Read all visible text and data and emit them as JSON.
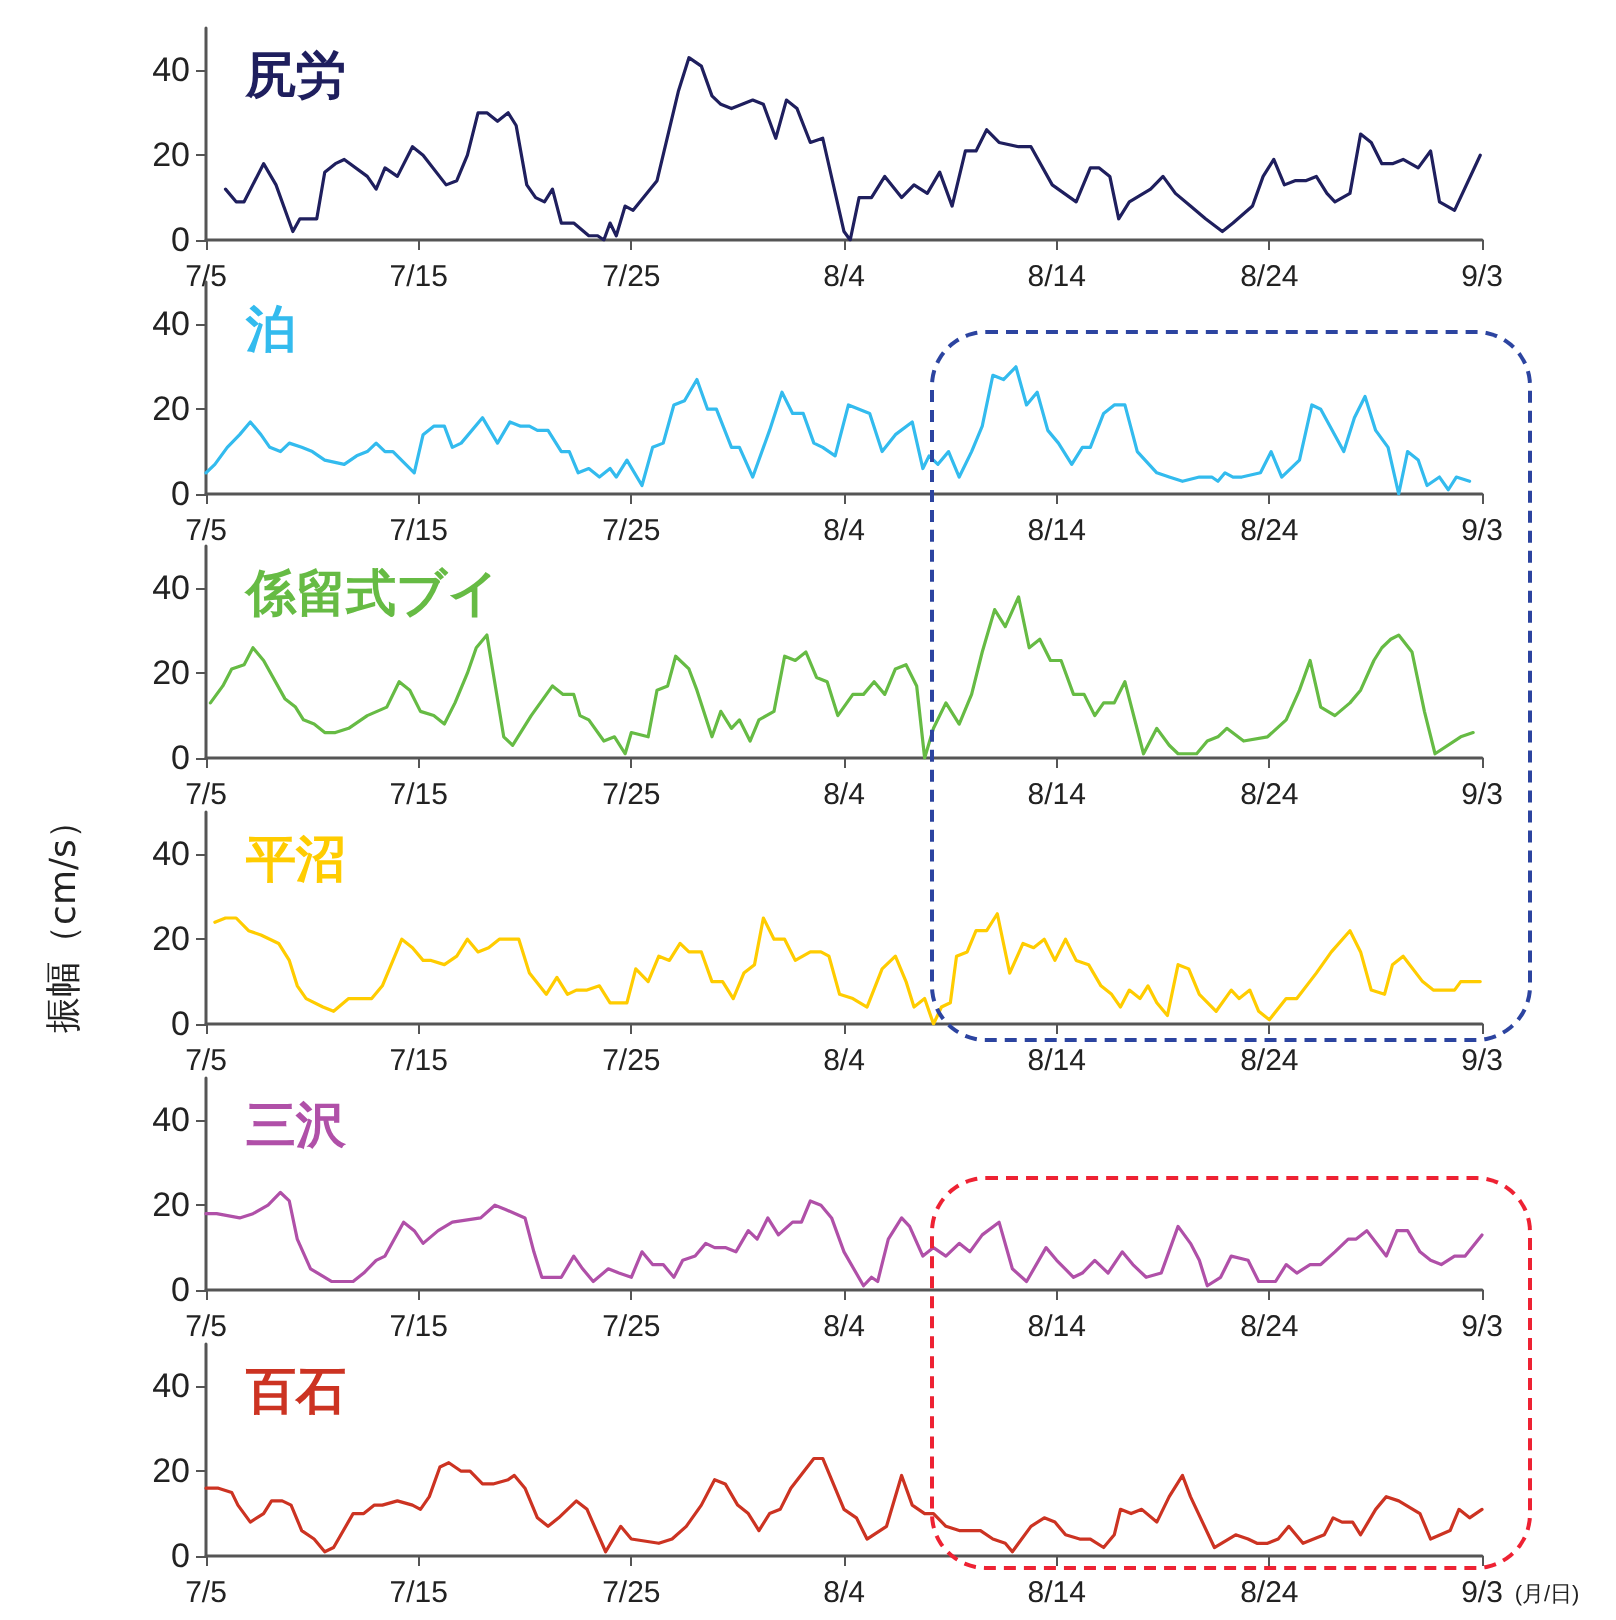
{
  "chart_data": [
    {
      "type": "line",
      "title": "尻労",
      "xlim": [
        "--07-05",
        "--09-03"
      ],
      "ylim": [
        0,
        50
      ],
      "yticks": [
        0,
        20,
        40
      ],
      "xticks": [
        {
          "value": "--07-05",
          "label": "7/5"
        },
        {
          "value": "--07-15",
          "label": "7/15"
        },
        {
          "value": "--07-25",
          "label": "7/25"
        },
        {
          "value": "--08-04",
          "label": "8/4"
        },
        {
          "value": "--08-14",
          "label": "8/14"
        },
        {
          "value": "--08-24",
          "label": "8/24"
        },
        {
          "value": "--09-03",
          "label": "9/3"
        }
      ],
      "grid": false,
      "marker": "none",
      "line_style": "solid",
      "series": [
        {
          "color": "#1f1f5e",
          "x": [
            "--07-05T22:00",
            "--07-06T10:00",
            "--07-06T19:00",
            "--07-07T17:00",
            "--07-08T07:00",
            "--07-09T02:00",
            "--07-09T10:00",
            "--07-10T05:00",
            "--07-10T14:00",
            "--07-11T02:00",
            "--07-11T12:00",
            "--07-12T14:00",
            "--07-13T00:00",
            "--07-13T10:00",
            "--07-14T00:00",
            "--07-14T17:00",
            "--07-15T05:00",
            "--07-16T07:00",
            "--07-16T19:00",
            "--07-17T07:00",
            "--07-17T19:00",
            "--07-18T05:00",
            "--07-18T17:00",
            "--07-19T05:00",
            "--07-19T14:00",
            "--07-20T02:00",
            "--07-20T12:00",
            "--07-20T22:00",
            "--07-21T07:00",
            "--07-21T17:00",
            "--07-22T07:00",
            "--07-23T00:00",
            "--07-23T10:00",
            "--07-23T17:00",
            "--07-24T00:00",
            "--07-24T07:00",
            "--07-24T17:00",
            "--07-25T02:00",
            "--07-26T05:00",
            "--07-27T05:00",
            "--07-27T17:00",
            "--07-28T07:00",
            "--07-28T19:00",
            "--07-29T05:00",
            "--07-29T17:00",
            "--07-30T17:00",
            "--07-31T05:00",
            "--07-31T19:00",
            "--08-01T07:00",
            "--08-01T19:00",
            "--08-02T10:00",
            "--08-03T00:00",
            "--08-04T00:00",
            "--08-04T07:00",
            "--08-04T17:00",
            "--08-05T07:00",
            "--08-05T22:00",
            "--08-06T17:00",
            "--08-07T07:00",
            "--08-07T22:00",
            "--08-08T12:00",
            "--08-09T02:00",
            "--08-09T17:00",
            "--08-10T05:00",
            "--08-10T17:00",
            "--08-11T07:00",
            "--08-12T05:00",
            "--08-12T19:00",
            "--08-13T19:00",
            "--08-14T22:00",
            "--08-15T14:00",
            "--08-16T00:00",
            "--08-16T12:00",
            "--08-16T22:00",
            "--08-17T10:00",
            "--08-18T10:00",
            "--08-19T00:00",
            "--08-19T14:00",
            "--08-20T07:00",
            "--08-21T00:00",
            "--08-21T19:00",
            "--08-22T07:00",
            "--08-23T05:00",
            "--08-23T17:00",
            "--08-24T05:00",
            "--08-24T17:00",
            "--08-25T05:00",
            "--08-25T17:00",
            "--08-26T05:00",
            "--08-26T17:00",
            "--08-27T02:00",
            "--08-27T19:00",
            "--08-28T07:00",
            "--08-28T19:00",
            "--08-29T07:00",
            "--08-29T19:00",
            "--08-30T07:00",
            "--08-31T00:00",
            "--08-31T14:00",
            "--09-01T00:00",
            "--09-01T17:00",
            "--09-02T22:00"
          ],
          "values": [
            12,
            9,
            9,
            18,
            13,
            2,
            5,
            5,
            16,
            18,
            19,
            15,
            12,
            17,
            15,
            22,
            20,
            13,
            14,
            20,
            30,
            30,
            28,
            30,
            27,
            13,
            10,
            9,
            12,
            4,
            4,
            1,
            1,
            0,
            4,
            1,
            8,
            7,
            14,
            35,
            43,
            41,
            34,
            32,
            31,
            33,
            32,
            24,
            33,
            31,
            23,
            24,
            2,
            0,
            10,
            10,
            15,
            10,
            13,
            11,
            16,
            8,
            21,
            21,
            26,
            23,
            22,
            22,
            13,
            9,
            17,
            17,
            15,
            5,
            9,
            12,
            15,
            11,
            8,
            5,
            2,
            4,
            8,
            15,
            19,
            13,
            14,
            14,
            15,
            11,
            9,
            11,
            25,
            23,
            18,
            18,
            19,
            17,
            21,
            9,
            7,
            20
          ]
        }
      ]
    },
    {
      "type": "line",
      "title": "泊",
      "xlim": [
        "--07-05",
        "--09-03"
      ],
      "ylim": [
        0,
        50
      ],
      "yticks": [
        0,
        20,
        40
      ],
      "xticks": [
        {
          "value": "--07-05",
          "label": "7/5"
        },
        {
          "value": "--07-15",
          "label": "7/15"
        },
        {
          "value": "--07-25",
          "label": "7/25"
        },
        {
          "value": "--08-04",
          "label": "8/4"
        },
        {
          "value": "--08-14",
          "label": "8/14"
        },
        {
          "value": "--08-24",
          "label": "8/24"
        },
        {
          "value": "--09-03",
          "label": "9/3"
        }
      ],
      "grid": false,
      "marker": "none",
      "line_style": "solid",
      "series": [
        {
          "color": "#33bbee",
          "x": [
            "--07-05T00:00",
            "--07-05T10:00",
            "--07-06T00:00",
            "--07-06T14:00",
            "--07-07T02:00",
            "--07-07T14:00",
            "--07-08T00:00",
            "--07-08T12:00",
            "--07-08T22:00",
            "--07-09T12:00",
            "--07-10T00:00",
            "--07-10T14:00",
            "--07-11T12:00",
            "--07-12T02:00",
            "--07-12T14:00",
            "--07-13T00:00",
            "--07-13T10:00",
            "--07-13T19:00",
            "--07-14T19:00",
            "--07-15T05:00",
            "--07-15T17:00",
            "--07-16T05:00",
            "--07-16T14:00",
            "--07-17T00:00",
            "--07-18T00:00",
            "--07-18T17:00",
            "--07-19T07:00",
            "--07-19T19:00",
            "--07-20T05:00",
            "--07-20T14:00",
            "--07-21T02:00",
            "--07-21T17:00",
            "--07-22T02:00",
            "--07-22T12:00",
            "--07-23T00:00",
            "--07-23T12:00",
            "--07-24T00:00",
            "--07-24T07:00",
            "--07-24T19:00",
            "--07-25T12:00",
            "--07-26T00:00",
            "--07-26T12:00",
            "--07-27T00:00",
            "--07-27T12:00",
            "--07-28T02:00",
            "--07-28T14:00",
            "--07-29T00:00",
            "--07-29T17:00",
            "--07-30T02:00",
            "--07-30T17:00",
            "--07-31T12:00",
            "--08-01T02:00",
            "--08-01T14:00",
            "--08-02T02:00",
            "--08-02T14:00",
            "--08-03T00:00",
            "--08-03T14:00",
            "--08-04T05:00",
            "--08-05T05:00",
            "--08-05T19:00",
            "--08-06T10:00",
            "--08-07T05:00",
            "--08-07T17:00",
            "--08-08T00:00",
            "--08-08T10:00",
            "--08-08T22:00",
            "--08-09T10:00",
            "--08-10T00:00",
            "--08-10T12:00",
            "--08-11T00:00",
            "--08-11T12:00",
            "--08-12T02:00",
            "--08-12T14:00",
            "--08-13T02:00",
            "--08-13T14:00",
            "--08-14T02:00",
            "--08-14T17:00",
            "--08-15T05:00",
            "--08-15T14:00",
            "--08-16T05:00",
            "--08-16T17:00",
            "--08-17T05:00",
            "--08-17T19:00",
            "--08-18T17:00",
            "--08-19T07:00",
            "--08-19T22:00",
            "--08-20T17:00",
            "--08-21T07:00",
            "--08-21T14:00",
            "--08-21T22:00",
            "--08-22T07:00",
            "--08-22T17:00",
            "--08-23T14:00",
            "--08-24T02:00",
            "--08-24T14:00",
            "--08-25T10:00",
            "--08-26T00:00",
            "--08-26T10:00",
            "--08-27T12:00",
            "--08-28T00:00",
            "--08-28T12:00",
            "--08-29T00:00",
            "--08-29T14:00",
            "--08-30T02:00",
            "--08-30T12:00",
            "--08-31T00:00",
            "--08-31T10:00",
            "--09-01T00:00",
            "--09-01T10:00",
            "--09-01T19:00",
            "--09-02T10:00"
          ],
          "values": [
            5,
            7,
            11,
            14,
            17,
            14,
            11,
            10,
            12,
            11,
            10,
            8,
            7,
            9,
            10,
            12,
            10,
            10,
            5,
            14,
            16,
            16,
            11,
            12,
            18,
            12,
            17,
            16,
            16,
            15,
            15,
            10,
            10,
            5,
            6,
            4,
            6,
            4,
            8,
            2,
            11,
            12,
            21,
            22,
            27,
            20,
            20,
            11,
            11,
            4,
            15,
            24,
            19,
            19,
            12,
            11,
            9,
            21,
            19,
            10,
            14,
            17,
            6,
            9,
            7,
            10,
            4,
            10,
            16,
            28,
            27,
            30,
            21,
            24,
            15,
            12,
            7,
            11,
            11,
            19,
            21,
            21,
            10,
            5,
            4,
            3,
            4,
            4,
            3,
            5,
            4,
            4,
            5,
            10,
            4,
            8,
            21,
            20,
            10,
            18,
            23,
            15,
            11,
            0,
            10,
            8,
            2,
            4,
            1,
            4,
            3
          ]
        }
      ]
    },
    {
      "type": "line",
      "title": "係留式ブイ",
      "xlim": [
        "--07-05",
        "--09-03"
      ],
      "ylim": [
        0,
        50
      ],
      "yticks": [
        0,
        20,
        40
      ],
      "xticks": [
        {
          "value": "--07-05",
          "label": "7/5"
        },
        {
          "value": "--07-15",
          "label": "7/15"
        },
        {
          "value": "--07-25",
          "label": "7/25"
        },
        {
          "value": "--08-04",
          "label": "8/4"
        },
        {
          "value": "--08-14",
          "label": "8/14"
        },
        {
          "value": "--08-24",
          "label": "8/24"
        },
        {
          "value": "--09-03",
          "label": "9/3"
        }
      ],
      "grid": false,
      "marker": "none",
      "line_style": "solid",
      "series": [
        {
          "color": "#66bb44",
          "x": [
            "--07-05T05:00",
            "--07-05T19:00",
            "--07-06T05:00",
            "--07-06T19:00",
            "--07-07T05:00",
            "--07-07T17:00",
            "--07-08T17:00",
            "--07-09T05:00",
            "--07-09T14:00",
            "--07-10T02:00",
            "--07-10T14:00",
            "--07-11T02:00",
            "--07-11T17:00",
            "--07-12T14:00",
            "--07-13T12:00",
            "--07-14T02:00",
            "--07-14T14:00",
            "--07-15T02:00",
            "--07-15T17:00",
            "--07-16T05:00",
            "--07-16T17:00",
            "--07-17T07:00",
            "--07-17T17:00",
            "--07-18T05:00",
            "--07-19T00:00",
            "--07-19T10:00",
            "--07-20T07:00",
            "--07-21T07:00",
            "--07-21T19:00",
            "--07-22T07:00",
            "--07-22T14:00",
            "--07-23T00:00",
            "--07-23T17:00",
            "--07-24T05:00",
            "--07-24T17:00",
            "--07-25T00:00",
            "--07-25T19:00",
            "--07-26T05:00",
            "--07-26T17:00",
            "--07-27T02:00",
            "--07-27T17:00",
            "--07-28T02:00",
            "--07-28T19:00",
            "--07-29T05:00",
            "--07-29T17:00",
            "--07-30T02:00",
            "--07-30T14:00",
            "--07-31T00:00",
            "--07-31T17:00",
            "--08-01T05:00",
            "--08-01T17:00",
            "--08-02T05:00",
            "--08-02T17:00",
            "--08-03T05:00",
            "--08-03T17:00",
            "--08-04T10:00",
            "--08-04T22:00",
            "--08-05T10:00",
            "--08-05T22:00",
            "--08-06T10:00",
            "--08-06T22:00",
            "--08-07T10:00",
            "--08-07T19:00",
            "--08-08T05:00",
            "--08-08T19:00",
            "--08-09T10:00",
            "--08-10T00:00",
            "--08-10T12:00",
            "--08-11T02:00",
            "--08-11T14:00",
            "--08-12T05:00",
            "--08-12T17:00",
            "--08-13T05:00",
            "--08-13T17:00",
            "--08-14T05:00",
            "--08-14T19:00",
            "--08-15T07:00",
            "--08-15T19:00",
            "--08-16T05:00",
            "--08-16T17:00",
            "--08-17T05:00",
            "--08-18T02:00",
            "--08-18T17:00",
            "--08-19T07:00",
            "--08-19T17:00",
            "--08-20T14:00",
            "--08-21T02:00",
            "--08-21T14:00",
            "--08-22T00:00",
            "--08-22T19:00",
            "--08-23T22:00",
            "--08-24T19:00",
            "--08-25T10:00",
            "--08-25T22:00",
            "--08-26T10:00",
            "--08-27T02:00",
            "--08-27T19:00",
            "--08-28T07:00",
            "--08-28T22:00",
            "--08-29T07:00",
            "--08-29T17:00",
            "--08-30T02:00",
            "--08-30T17:00",
            "--08-31T07:00",
            "--08-31T19:00",
            "--09-02T00:00",
            "--09-02T14:00"
          ],
          "values": [
            13,
            17,
            21,
            22,
            26,
            23,
            14,
            12,
            9,
            8,
            6,
            6,
            7,
            10,
            12,
            18,
            16,
            11,
            10,
            8,
            13,
            20,
            26,
            29,
            5,
            3,
            10,
            17,
            15,
            15,
            10,
            9,
            4,
            5,
            1,
            6,
            5,
            16,
            17,
            24,
            21,
            16,
            5,
            11,
            7,
            9,
            4,
            9,
            11,
            24,
            23,
            25,
            19,
            18,
            10,
            15,
            15,
            18,
            15,
            21,
            22,
            17,
            0,
            7,
            13,
            8,
            15,
            25,
            35,
            31,
            38,
            26,
            28,
            23,
            23,
            15,
            15,
            10,
            13,
            13,
            18,
            1,
            7,
            3,
            1,
            1,
            4,
            5,
            7,
            4,
            5,
            9,
            16,
            23,
            12,
            10,
            13,
            16,
            23,
            26,
            28,
            29,
            25,
            11,
            1,
            5,
            6
          ]
        }
      ]
    },
    {
      "type": "line",
      "title": "平沼",
      "ylabel": "振幅（cm/s）",
      "xlim": [
        "--07-05",
        "--09-03"
      ],
      "ylim": [
        0,
        50
      ],
      "yticks": [
        0,
        20,
        40
      ],
      "xticks": [
        {
          "value": "--07-05",
          "label": "7/5"
        },
        {
          "value": "--07-15",
          "label": "7/15"
        },
        {
          "value": "--07-25",
          "label": "7/25"
        },
        {
          "value": "--08-04",
          "label": "8/4"
        },
        {
          "value": "--08-14",
          "label": "8/14"
        },
        {
          "value": "--08-24",
          "label": "8/24"
        },
        {
          "value": "--09-03",
          "label": "9/3"
        }
      ],
      "grid": false,
      "marker": "none",
      "line_style": "solid",
      "series": [
        {
          "color": "#ffcc00",
          "x": [
            "--07-05T10:00",
            "--07-05T22:00",
            "--07-06T10:00",
            "--07-07T00:00",
            "--07-07T14:00",
            "--07-08T10:00",
            "--07-08T22:00",
            "--07-09T07:00",
            "--07-09T17:00",
            "--07-10T12:00",
            "--07-11T00:00",
            "--07-11T17:00",
            "--07-12T07:00",
            "--07-12T19:00",
            "--07-13T07:00",
            "--07-13T19:00",
            "--07-14T05:00",
            "--07-14T17:00",
            "--07-15T05:00",
            "--07-15T14:00",
            "--07-16T05:00",
            "--07-16T19:00",
            "--07-17T07:00",
            "--07-17T19:00",
            "--07-18T07:00",
            "--07-18T19:00",
            "--07-19T07:00",
            "--07-19T17:00",
            "--07-20T05:00",
            "--07-21T00:00",
            "--07-21T12:00",
            "--07-22T00:00",
            "--07-22T10:00",
            "--07-22T22:00",
            "--07-23T12:00",
            "--07-24T00:00",
            "--07-24T19:00",
            "--07-25T05:00",
            "--07-25T19:00",
            "--07-26T07:00",
            "--07-26T19:00",
            "--07-27T07:00",
            "--07-27T17:00",
            "--07-28T07:00",
            "--07-28T19:00",
            "--07-29T07:00",
            "--07-29T19:00",
            "--07-30T07:00",
            "--07-30T19:00",
            "--07-31T05:00",
            "--07-31T17:00",
            "--08-01T05:00",
            "--08-01T17:00",
            "--08-02T10:00",
            "--08-02T22:00",
            "--08-03T07:00",
            "--08-03T19:00",
            "--08-04T10:00",
            "--08-05T02:00",
            "--08-05T19:00",
            "--08-06T10:00",
            "--08-06T22:00",
            "--08-07T07:00",
            "--08-07T19:00",
            "--08-08T05:00",
            "--08-08T14:00",
            "--08-09T00:00",
            "--08-09T07:00",
            "--08-09T19:00",
            "--08-10T05:00",
            "--08-10T17:00",
            "--08-11T05:00",
            "--08-11T19:00",
            "--08-12T10:00",
            "--08-12T22:00",
            "--08-13T10:00",
            "--08-13T22:00",
            "--08-14T10:00",
            "--08-14T22:00",
            "--08-15T12:00",
            "--08-16T02:00",
            "--08-16T14:00",
            "--08-17T00:00",
            "--08-17T10:00",
            "--08-17T22:00",
            "--08-18T07:00",
            "--08-18T17:00",
            "--08-19T05:00",
            "--08-19T17:00",
            "--08-20T05:00",
            "--08-20T17:00",
            "--08-21T12:00",
            "--08-22T05:00",
            "--08-22T14:00",
            "--08-23T02:00",
            "--08-23T12:00",
            "--08-24T00:00",
            "--08-24T19:00",
            "--08-25T07:00",
            "--08-26T05:00",
            "--08-26T22:00",
            "--08-27T19:00",
            "--08-28T07:00",
            "--08-28T19:00",
            "--08-29T10:00",
            "--08-29T19:00",
            "--08-30T07:00",
            "--08-31T05:00",
            "--08-31T17:00",
            "--09-01T07:00",
            "--09-01T17:00",
            "--09-02T00:00",
            "--09-02T22:00"
          ],
          "values": [
            24,
            25,
            25,
            22,
            21,
            19,
            15,
            9,
            6,
            4,
            3,
            6,
            6,
            6,
            9,
            15,
            20,
            18,
            15,
            15,
            14,
            16,
            20,
            17,
            18,
            20,
            20,
            20,
            12,
            7,
            11,
            7,
            8,
            8,
            9,
            5,
            5,
            13,
            10,
            16,
            15,
            19,
            17,
            17,
            10,
            10,
            6,
            12,
            14,
            25,
            20,
            20,
            15,
            17,
            17,
            16,
            7,
            6,
            4,
            13,
            16,
            10,
            4,
            6,
            0,
            4,
            5,
            16,
            17,
            22,
            22,
            26,
            12,
            19,
            18,
            20,
            15,
            20,
            15,
            14,
            9,
            7,
            4,
            8,
            6,
            9,
            5,
            2,
            14,
            13,
            7,
            3,
            8,
            6,
            8,
            3,
            1,
            6,
            6,
            12,
            17,
            22,
            17,
            8,
            7,
            14,
            16,
            10,
            8,
            8,
            8,
            10,
            10
          ]
        }
      ]
    },
    {
      "type": "line",
      "title": "三沢",
      "xlim": [
        "--07-05",
        "--09-03"
      ],
      "ylim": [
        0,
        50
      ],
      "yticks": [
        0,
        20,
        40
      ],
      "xticks": [
        {
          "value": "--07-05",
          "label": "7/5"
        },
        {
          "value": "--07-15",
          "label": "7/15"
        },
        {
          "value": "--07-25",
          "label": "7/25"
        },
        {
          "value": "--08-04",
          "label": "8/4"
        },
        {
          "value": "--08-14",
          "label": "8/14"
        },
        {
          "value": "--08-24",
          "label": "8/24"
        },
        {
          "value": "--09-03",
          "label": "9/3"
        }
      ],
      "grid": false,
      "marker": "none",
      "line_style": "solid",
      "series": [
        {
          "color": "#b050a8",
          "x": [
            "--07-05T00:00",
            "--07-05T12:00",
            "--07-06T14:00",
            "--07-07T05:00",
            "--07-07T22:00",
            "--07-08T12:00",
            "--07-08T22:00",
            "--07-09T07:00",
            "--07-09T22:00",
            "--07-10T22:00",
            "--07-11T10:00",
            "--07-11T22:00",
            "--07-12T10:00",
            "--07-13T00:00",
            "--07-13T10:00",
            "--07-14T07:00",
            "--07-14T19:00",
            "--07-15T05:00",
            "--07-15T22:00",
            "--07-16T14:00",
            "--07-17T22:00",
            "--07-18T14:00",
            "--07-19T02:00",
            "--07-20T00:00",
            "--07-20T10:00",
            "--07-20T19:00",
            "--07-21T17:00",
            "--07-22T07:00",
            "--07-22T17:00",
            "--07-23T05:00",
            "--07-23T22:00",
            "--07-24T10:00",
            "--07-25T00:00",
            "--07-25T12:00",
            "--07-26T00:00",
            "--07-26T12:00",
            "--07-27T00:00",
            "--07-27T10:00",
            "--07-28T00:00",
            "--07-28T12:00",
            "--07-28T22:00",
            "--07-29T10:00",
            "--07-29T22:00",
            "--07-30T12:00",
            "--07-30T22:00",
            "--07-31T10:00",
            "--07-31T22:00",
            "--08-01T14:00",
            "--08-02T00:00",
            "--08-02T10:00",
            "--08-02T22:00",
            "--08-03T10:00",
            "--08-04T00:00",
            "--08-04T22:00",
            "--08-05T07:00",
            "--08-05T14:00",
            "--08-06T02:00",
            "--08-06T17:00",
            "--08-07T02:00",
            "--08-07T17:00",
            "--08-08T05:00",
            "--08-08T19:00",
            "--08-09T10:00",
            "--08-09T22:00",
            "--08-10T12:00",
            "--08-11T07:00",
            "--08-11T22:00",
            "--08-12T14:00",
            "--08-13T12:00",
            "--08-14T00:00",
            "--08-14T19:00",
            "--08-15T05:00",
            "--08-15T19:00",
            "--08-16T10:00",
            "--08-17T02:00",
            "--08-17T14:00",
            "--08-18T05:00",
            "--08-18T22:00",
            "--08-19T17:00",
            "--08-20T07:00",
            "--08-20T17:00",
            "--08-21T02:00",
            "--08-21T17:00",
            "--08-22T05:00",
            "--08-23T00:00",
            "--08-23T12:00",
            "--08-24T07:00",
            "--08-24T19:00",
            "--08-25T07:00",
            "--08-25T22:00",
            "--08-26T10:00",
            "--08-27T02:00",
            "--08-27T17:00",
            "--08-28T02:00",
            "--08-28T14:00",
            "--08-29T12:00",
            "--08-30T00:00",
            "--08-30T12:00",
            "--08-31T02:00",
            "--08-31T14:00",
            "--09-01T02:00",
            "--09-01T17:00",
            "--09-02T05:00",
            "--09-03T00:00"
          ],
          "values": [
            18,
            18,
            17,
            18,
            20,
            23,
            21,
            12,
            5,
            2,
            2,
            2,
            4,
            7,
            8,
            16,
            14,
            11,
            14,
            16,
            17,
            20,
            19,
            17,
            9,
            3,
            3,
            8,
            5,
            2,
            5,
            4,
            3,
            9,
            6,
            6,
            3,
            7,
            8,
            11,
            10,
            10,
            9,
            14,
            12,
            17,
            13,
            16,
            16,
            21,
            20,
            17,
            9,
            1,
            3,
            2,
            12,
            17,
            15,
            8,
            10,
            8,
            11,
            9,
            13,
            16,
            5,
            2,
            10,
            7,
            3,
            4,
            7,
            4,
            9,
            6,
            3,
            4,
            15,
            11,
            7,
            1,
            3,
            8,
            7,
            2,
            2,
            6,
            4,
            6,
            6,
            9,
            12,
            12,
            14,
            8,
            14,
            14,
            9,
            7,
            6,
            8,
            8,
            13
          ]
        }
      ]
    },
    {
      "type": "line",
      "title": "百石",
      "xlabel": "(月/日)",
      "xlim": [
        "--07-05",
        "--09-03"
      ],
      "ylim": [
        0,
        50
      ],
      "yticks": [
        0,
        20,
        40
      ],
      "xticks": [
        {
          "value": "--07-05",
          "label": "7/5"
        },
        {
          "value": "--07-15",
          "label": "7/15"
        },
        {
          "value": "--07-25",
          "label": "7/25"
        },
        {
          "value": "--08-04",
          "label": "8/4"
        },
        {
          "value": "--08-14",
          "label": "8/14"
        },
        {
          "value": "--08-24",
          "label": "8/24"
        },
        {
          "value": "--09-03",
          "label": "9/3"
        }
      ],
      "grid": false,
      "marker": "none",
      "line_style": "solid",
      "series": [
        {
          "color": "#cc3322",
          "x": [
            "--07-05T00:00",
            "--07-05T14:00",
            "--07-06T05:00",
            "--07-06T12:00",
            "--07-07T02:00",
            "--07-07T17:00",
            "--07-08T02:00",
            "--07-08T14:00",
            "--07-09T00:00",
            "--07-09T12:00",
            "--07-10T02:00",
            "--07-10T14:00",
            "--07-11T00:00",
            "--07-11T22:00",
            "--07-12T10:00",
            "--07-12T22:00",
            "--07-13T07:00",
            "--07-14T00:00",
            "--07-14T17:00",
            "--07-15T02:00",
            "--07-15T12:00",
            "--07-16T00:00",
            "--07-16T10:00",
            "--07-17T00:00",
            "--07-17T10:00",
            "--07-18T00:00",
            "--07-18T12:00",
            "--07-19T05:00",
            "--07-19T12:00",
            "--07-20T00:00",
            "--07-20T14:00",
            "--07-21T02:00",
            "--07-21T14:00",
            "--07-22T10:00",
            "--07-22T22:00",
            "--07-23T19:00",
            "--07-24T12:00",
            "--07-25T00:00",
            "--07-26T07:00",
            "--07-26T22:00",
            "--07-27T14:00",
            "--07-28T07:00",
            "--07-28T22:00",
            "--07-29T10:00",
            "--07-30T00:00",
            "--07-30T12:00",
            "--07-31T00:00",
            "--07-31T12:00",
            "--08-01T00:00",
            "--08-01T12:00",
            "--08-02T14:00",
            "--08-03T00:00",
            "--08-04T00:00",
            "--08-04T14:00",
            "--08-05T02:00",
            "--08-06T00:00",
            "--08-06T17:00",
            "--08-07T05:00",
            "--08-07T19:00",
            "--08-08T05:00",
            "--08-08T19:00",
            "--08-09T10:00",
            "--08-10T10:00",
            "--08-11T00:00",
            "--08-11T14:00",
            "--08-11T22:00",
            "--08-12T19:00",
            "--08-13T10:00",
            "--08-13T22:00",
            "--08-14T10:00",
            "--08-15T02:00",
            "--08-15T14:00",
            "--08-16T05:00",
            "--08-16T17:00",
            "--08-17T00:00",
            "--08-17T12:00",
            "--08-18T00:00",
            "--08-18T17:00",
            "--08-19T07:00",
            "--08-19T22:00",
            "--08-20T07:00",
            "--08-21T10:00",
            "--08-22T10:00",
            "--08-23T00:00",
            "--08-23T10:00",
            "--08-23T22:00",
            "--08-24T10:00",
            "--08-24T22:00",
            "--08-25T14:00",
            "--08-26T14:00",
            "--08-27T00:00",
            "--08-27T10:00",
            "--08-27T22:00",
            "--08-28T07:00",
            "--08-29T00:00",
            "--08-29T12:00",
            "--08-30T02:00",
            "--08-31T02:00",
            "--08-31T14:00",
            "--09-01T12:00",
            "--09-01T22:00",
            "--09-02T10:00",
            "--09-03T00:00"
          ],
          "values": [
            16,
            16,
            15,
            12,
            8,
            10,
            13,
            13,
            12,
            6,
            4,
            1,
            2,
            10,
            10,
            12,
            12,
            13,
            12,
            11,
            14,
            21,
            22,
            20,
            20,
            17,
            17,
            18,
            19,
            16,
            9,
            7,
            9,
            13,
            11,
            1,
            7,
            4,
            3,
            4,
            7,
            12,
            18,
            17,
            12,
            10,
            6,
            10,
            11,
            16,
            23,
            23,
            11,
            9,
            4,
            7,
            19,
            12,
            10,
            10,
            7,
            6,
            6,
            4,
            3,
            1,
            7,
            9,
            8,
            5,
            4,
            4,
            2,
            5,
            11,
            10,
            11,
            8,
            14,
            19,
            14,
            2,
            5,
            4,
            3,
            3,
            4,
            7,
            3,
            5,
            9,
            8,
            8,
            5,
            11,
            14,
            13,
            10,
            4,
            6,
            11,
            9,
            11
          ]
        }
      ]
    }
  ]
}
